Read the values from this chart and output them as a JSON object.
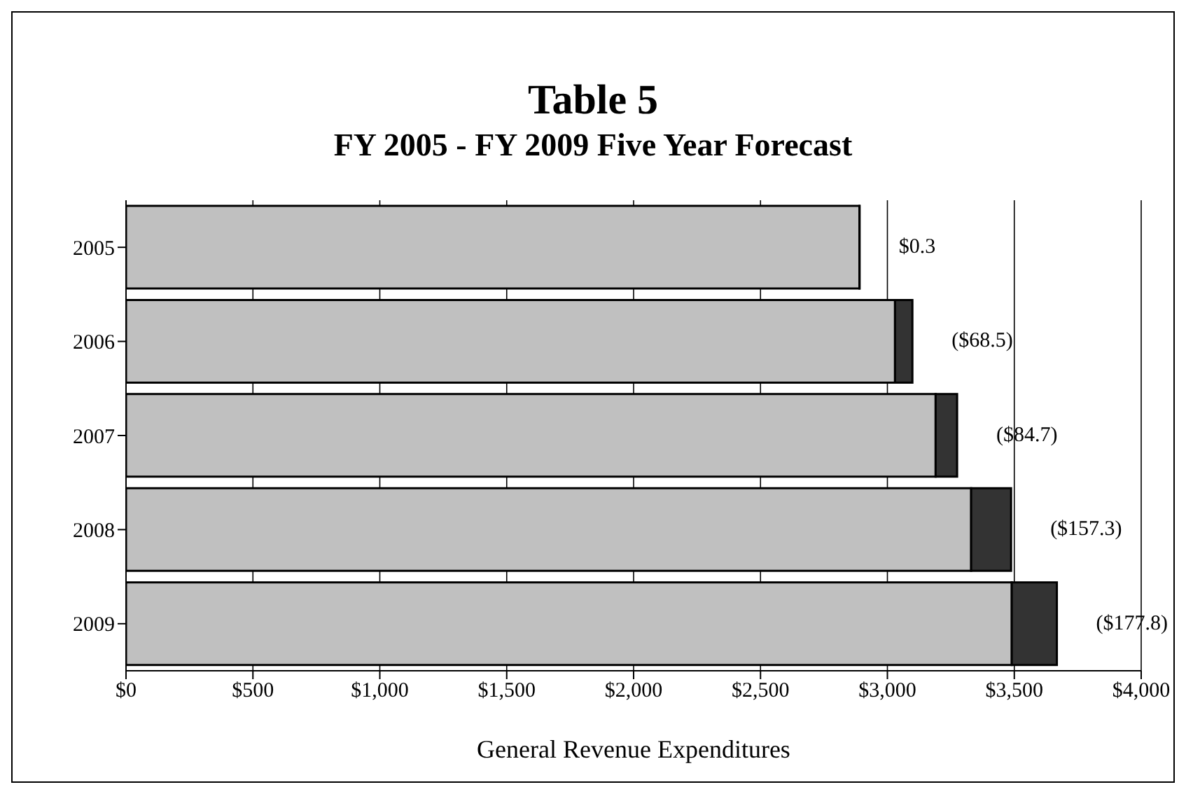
{
  "chart_data": {
    "type": "bar",
    "title": "Table 5",
    "subtitle": "FY 2005 - FY 2009 Five Year Forecast",
    "xlabel": "General Revenue Expenditures",
    "orientation": "horizontal",
    "stacked": true,
    "categories": [
      "2005",
      "2006",
      "2007",
      "2008",
      "2009"
    ],
    "series": [
      {
        "color": "#c0c0c0",
        "values": [
          2890,
          3030,
          3190,
          3330,
          3490
        ]
      },
      {
        "color": "#333333",
        "values": [
          0.3,
          68.5,
          84.7,
          157.3,
          177.8
        ],
        "value_labels": [
          "$0.3",
          "($68.5)",
          "($84.7)",
          "($157.3)",
          "($177.8)"
        ]
      }
    ],
    "xlim": [
      0,
      4000
    ],
    "xticks": [
      {
        "value": 0,
        "label": "$0"
      },
      {
        "value": 500,
        "label": "$500"
      },
      {
        "value": 1000,
        "label": "$1,000"
      },
      {
        "value": 1500,
        "label": "$1,500"
      },
      {
        "value": 2000,
        "label": "$2,000"
      },
      {
        "value": 2500,
        "label": "$2,500"
      },
      {
        "value": 3000,
        "label": "$3,000"
      },
      {
        "value": 3500,
        "label": "$3,500"
      },
      {
        "value": 4000,
        "label": "$4,000"
      }
    ],
    "grid": "x",
    "legend": false
  }
}
